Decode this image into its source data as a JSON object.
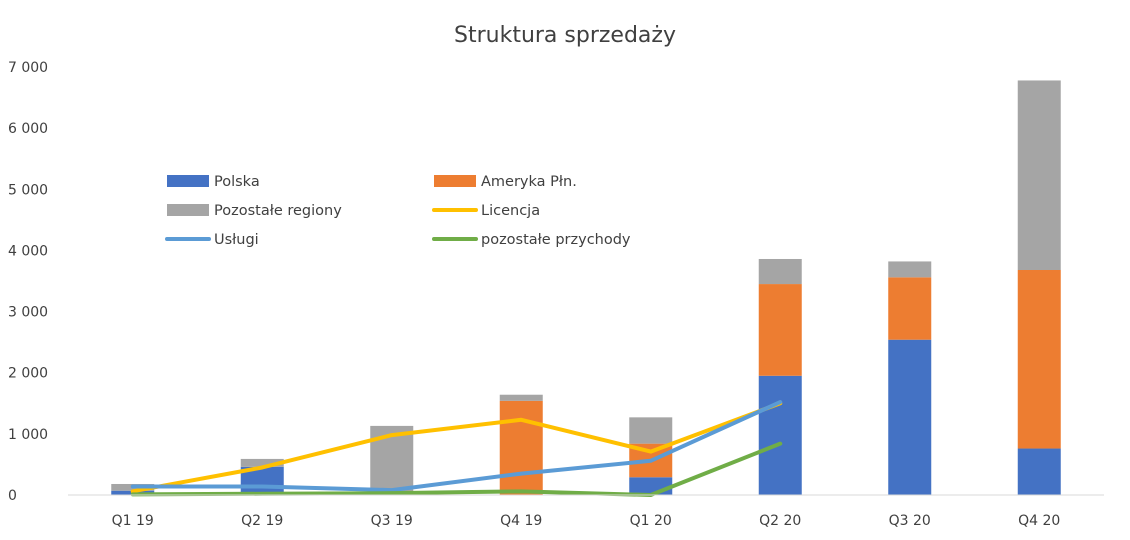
{
  "chart_data": {
    "type": "bar",
    "title": "Struktura sprzedaży",
    "categories": [
      "Q1 19",
      "Q2 19",
      "Q3 19",
      "Q4 19",
      "Q1 20",
      "Q2 20",
      "Q3 20",
      "Q4 20"
    ],
    "ylim": [
      0,
      7000
    ],
    "yticks": [
      0,
      1000,
      2000,
      3000,
      4000,
      5000,
      6000,
      7000
    ],
    "ytick_labels": [
      "0",
      "1 000",
      "2 000",
      "3 000",
      "4 000",
      "5 000",
      "6 000",
      "7 000"
    ],
    "legend_position": "upper-left inside plot",
    "bars_stacked": [
      {
        "name": "Polska",
        "color": "#4472C4",
        "values": [
          70,
          460,
          0,
          0,
          290,
          1950,
          2540,
          760
        ]
      },
      {
        "name": "Ameryka Płn.",
        "color": "#ED7D31",
        "values": [
          0,
          0,
          0,
          1540,
          550,
          1500,
          1020,
          2920
        ]
      },
      {
        "name": "Pozostałe regiony",
        "color": "#A5A5A5",
        "values": [
          110,
          130,
          1130,
          100,
          430,
          410,
          260,
          3100
        ]
      }
    ],
    "lines": [
      {
        "name": "Licencja",
        "color": "#FFC000",
        "values": [
          60,
          450,
          980,
          1230,
          710,
          1500,
          null,
          null
        ]
      },
      {
        "name": "Usługi",
        "color": "#5B9BD5",
        "values": [
          140,
          140,
          80,
          350,
          560,
          1520,
          null,
          null
        ]
      },
      {
        "name": "pozostałe przychody",
        "color": "#70AD47",
        "values": [
          10,
          20,
          30,
          60,
          0,
          840,
          null,
          null
        ]
      }
    ]
  }
}
